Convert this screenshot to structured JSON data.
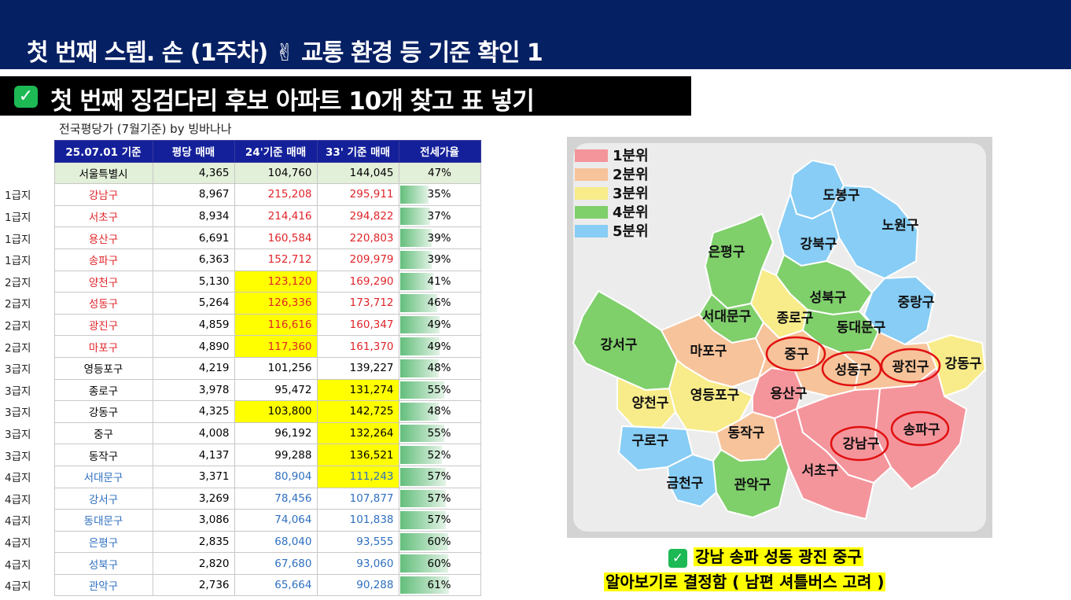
{
  "header": {
    "title": "첫 번째 스텝. 손 (1주차) ✌ 교통 환경 등 기준 확인 1"
  },
  "subheader": {
    "title": "첫 번째 징검다리 후보 아파트 10개 찾고 표 넣기"
  },
  "table": {
    "caption": "전국평당가 (7월기준) by 빙바나나",
    "headers": [
      "25.07.01 기준",
      "평당 매매",
      "24'기준 매매",
      "33' 기준 매매",
      "전세가율"
    ],
    "summary": {
      "name": "서울특별시",
      "pyeong": "4,365",
      "p24": "104,760",
      "p33": "144,045",
      "rate": "47%"
    },
    "rows": [
      {
        "level": "1급지",
        "name": "강남구",
        "pyeong": "8,967",
        "p24": "215,208",
        "p33": "295,911",
        "rate": "35%",
        "color": "red",
        "y24": false,
        "y33": false,
        "rate_value": 35
      },
      {
        "level": "1급지",
        "name": "서초구",
        "pyeong": "8,934",
        "p24": "214,416",
        "p33": "294,822",
        "rate": "37%",
        "color": "red",
        "y24": false,
        "y33": false,
        "rate_value": 37
      },
      {
        "level": "1급지",
        "name": "용산구",
        "pyeong": "6,691",
        "p24": "160,584",
        "p33": "220,803",
        "rate": "39%",
        "color": "red",
        "y24": false,
        "y33": false,
        "rate_value": 39
      },
      {
        "level": "1급지",
        "name": "송파구",
        "pyeong": "6,363",
        "p24": "152,712",
        "p33": "209,979",
        "rate": "39%",
        "color": "red",
        "y24": false,
        "y33": false,
        "rate_value": 39
      },
      {
        "level": "2급지",
        "name": "양천구",
        "pyeong": "5,130",
        "p24": "123,120",
        "p33": "169,290",
        "rate": "41%",
        "color": "red",
        "y24": true,
        "y33": false,
        "rate_value": 41
      },
      {
        "level": "2급지",
        "name": "성동구",
        "pyeong": "5,264",
        "p24": "126,336",
        "p33": "173,712",
        "rate": "46%",
        "color": "red",
        "y24": true,
        "y33": false,
        "rate_value": 46
      },
      {
        "level": "2급지",
        "name": "광진구",
        "pyeong": "4,859",
        "p24": "116,616",
        "p33": "160,347",
        "rate": "49%",
        "color": "red",
        "y24": true,
        "y33": false,
        "rate_value": 49
      },
      {
        "level": "2급지",
        "name": "마포구",
        "pyeong": "4,890",
        "p24": "117,360",
        "p33": "161,370",
        "rate": "49%",
        "color": "red",
        "y24": true,
        "y33": false,
        "rate_value": 49
      },
      {
        "level": "3급지",
        "name": "영등포구",
        "pyeong": "4,219",
        "p24": "101,256",
        "p33": "139,227",
        "rate": "48%",
        "color": "black",
        "y24": false,
        "y33": false,
        "rate_value": 48
      },
      {
        "level": "3급지",
        "name": "종로구",
        "pyeong": "3,978",
        "p24": "95,472",
        "p33": "131,274",
        "rate": "55%",
        "color": "black",
        "y24": false,
        "y33": true,
        "rate_value": 55
      },
      {
        "level": "3급지",
        "name": "강동구",
        "pyeong": "4,325",
        "p24": "103,800",
        "p33": "142,725",
        "rate": "48%",
        "color": "black",
        "y24": true,
        "y33": true,
        "rate_value": 48
      },
      {
        "level": "3급지",
        "name": "중구",
        "pyeong": "4,008",
        "p24": "96,192",
        "p33": "132,264",
        "rate": "55%",
        "color": "black",
        "y24": false,
        "y33": true,
        "rate_value": 55
      },
      {
        "level": "3급지",
        "name": "동작구",
        "pyeong": "4,137",
        "p24": "99,288",
        "p33": "136,521",
        "rate": "52%",
        "color": "black",
        "y24": false,
        "y33": true,
        "rate_value": 52
      },
      {
        "level": "4급지",
        "name": "서대문구",
        "pyeong": "3,371",
        "p24": "80,904",
        "p33": "111,243",
        "rate": "57%",
        "color": "blue",
        "y24": false,
        "y33": true,
        "rate_value": 57
      },
      {
        "level": "4급지",
        "name": "강서구",
        "pyeong": "3,269",
        "p24": "78,456",
        "p33": "107,877",
        "rate": "57%",
        "color": "blue",
        "y24": false,
        "y33": false,
        "rate_value": 57
      },
      {
        "level": "4급지",
        "name": "동대문구",
        "pyeong": "3,086",
        "p24": "74,064",
        "p33": "101,838",
        "rate": "57%",
        "color": "blue",
        "y24": false,
        "y33": false,
        "rate_value": 57
      },
      {
        "level": "4급지",
        "name": "은평구",
        "pyeong": "2,835",
        "p24": "68,040",
        "p33": "93,555",
        "rate": "60%",
        "color": "blue",
        "y24": false,
        "y33": false,
        "rate_value": 60
      },
      {
        "level": "4급지",
        "name": "성북구",
        "pyeong": "2,820",
        "p24": "67,680",
        "p33": "93,060",
        "rate": "60%",
        "color": "blue",
        "y24": false,
        "y33": false,
        "rate_value": 60
      },
      {
        "level": "4급지",
        "name": "관악구",
        "pyeong": "2,736",
        "p24": "65,664",
        "p33": "90,288",
        "rate": "61%",
        "color": "blue",
        "y24": false,
        "y33": false,
        "rate_value": 61
      }
    ]
  },
  "map": {
    "legend": [
      {
        "label": "1분위",
        "color": "#f4959c"
      },
      {
        "label": "2분위",
        "color": "#f7c39a"
      },
      {
        "label": "3분위",
        "color": "#f8ec8a"
      },
      {
        "label": "4분위",
        "color": "#7fcf6b"
      },
      {
        "label": "5분위",
        "color": "#87cdf5"
      }
    ],
    "districts": {
      "dobong": "도봉구",
      "nowon": "노원구",
      "gangbuk": "강북구",
      "eunpyeong": "은평구",
      "seongbuk": "성북구",
      "jungnang": "중랑구",
      "seodaemun": "서대문구",
      "jongno": "종로구",
      "dongdaemun": "동대문구",
      "gangseo": "강서구",
      "mapo": "마포구",
      "junggu": "중구",
      "seongdong": "성동구",
      "gwangjin": "광진구",
      "gangdong": "강동구",
      "yangcheon": "양천구",
      "yeongdeungpo": "영등포구",
      "yongsan": "용산구",
      "songpa": "송파구",
      "dongjak": "동작구",
      "guro": "구로구",
      "gangnam": "강남구",
      "geumcheon": "금천구",
      "gwanak": "관악구",
      "seocho": "서초구"
    }
  },
  "note": {
    "line1": "강남 송파 성동 광진 중구",
    "line2": "알아보기로 결정함 ( 남편 셔틀버스 고려 )",
    "check": "✓"
  }
}
